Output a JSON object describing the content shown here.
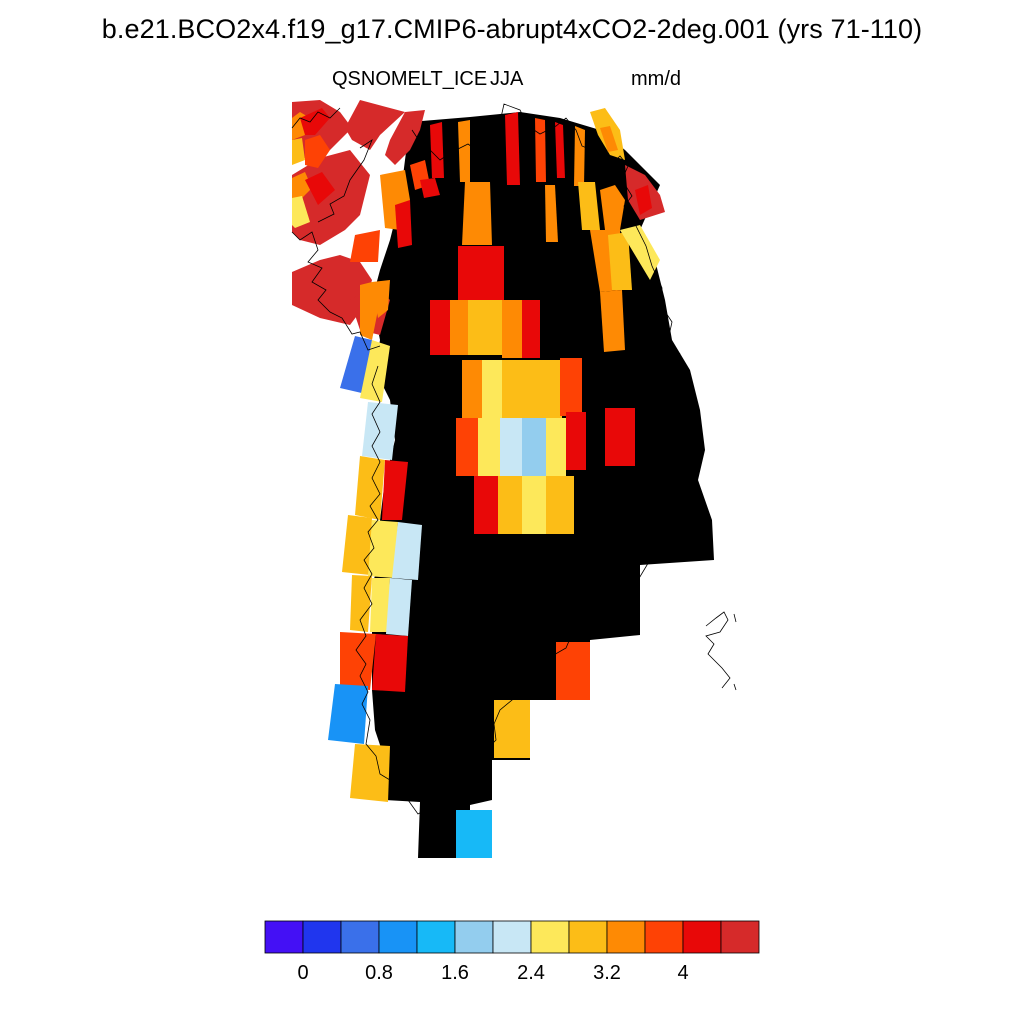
{
  "title": "b.e21.BCO2x4.f19_g17.CMIP6-abrupt4xCO2-2deg.001 (yrs 71-110)",
  "subtitle": {
    "variable": "QSNOMELT_ICE",
    "season": "JJA",
    "units": "mm/d"
  },
  "colorbar": {
    "colors": [
      "#4410f5",
      "#2036ee",
      "#3a70ea",
      "#1893f6",
      "#17b9f7",
      "#93cdee",
      "#c8e7f5",
      "#fde85a",
      "#fcbd17",
      "#fe8a04",
      "#fe4205",
      "#e80808",
      "#d62a2a"
    ],
    "tick_labels": [
      "0",
      "0.8",
      "1.6",
      "2.4",
      "3.2",
      "4"
    ]
  },
  "map_palette": {
    "dark_red": "#d62a2a",
    "red": "#e80808",
    "orange_red": "#fe4205",
    "orange": "#fe8a04",
    "gold": "#fcbd17",
    "yellow": "#fde85a",
    "pale_blue": "#c8e7f5",
    "light_blue": "#93cdee",
    "sky_blue": "#17b9f7",
    "blue": "#1893f6",
    "mid_blue": "#3a70ea"
  }
}
